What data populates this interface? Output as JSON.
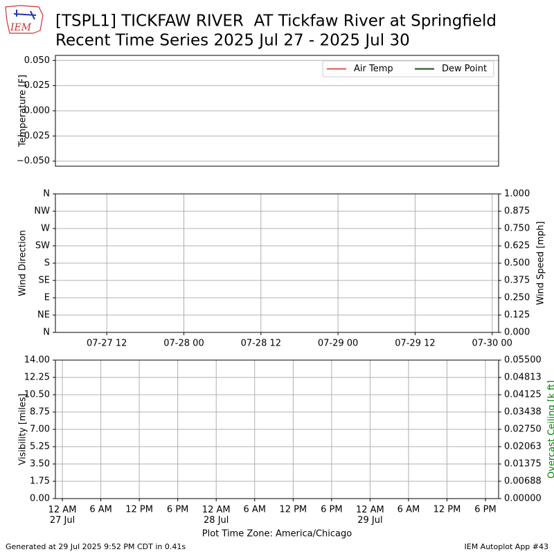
{
  "header": {
    "logo": "IEM",
    "title": [
      "[TSPL1] TICKFAW RIVER  AT Tickfaw River at Springfield",
      "Recent Time Series 2025 Jul 27 - 2025 Jul 30"
    ]
  },
  "chart_data": [
    {
      "type": "line",
      "ylabel": "Temperature [F]",
      "grid": "y",
      "legend": "upper right",
      "ylim": [
        -0.055,
        0.055
      ],
      "yticks": [
        {
          "value": -0.05,
          "label": "−0.050"
        },
        {
          "value": -0.025,
          "label": "−0.025"
        },
        {
          "value": 0,
          "label": "0.000"
        },
        {
          "value": 0.025,
          "label": "0.025"
        },
        {
          "value": 0.05,
          "label": "0.050"
        }
      ],
      "series": [
        {
          "name": "Air Temp",
          "color": "#e06666",
          "values": []
        },
        {
          "name": "Dew Point",
          "color": "#2e5e2e",
          "values": []
        }
      ]
    },
    {
      "type": "line",
      "ylabel": "Wind Direction",
      "y2label": "Wind Speed [mph]",
      "grid": "both",
      "xlim": [
        "2025-07-27 04:00",
        "2025-07-30 01:00"
      ],
      "xticks": [
        {
          "value": "2025-07-27 12:00",
          "label": "07-27 12"
        },
        {
          "value": "2025-07-28 00:00",
          "label": "07-28 00"
        },
        {
          "value": "2025-07-28 12:00",
          "label": "07-28 12"
        },
        {
          "value": "2025-07-29 00:00",
          "label": "07-29 00"
        },
        {
          "value": "2025-07-29 12:00",
          "label": "07-29 12"
        },
        {
          "value": "2025-07-30 00:00",
          "label": "07-30 00"
        }
      ],
      "ylim": [
        0,
        360
      ],
      "yticks": [
        {
          "value": 0,
          "label": "N"
        },
        {
          "value": 45,
          "label": "NE"
        },
        {
          "value": 90,
          "label": "E"
        },
        {
          "value": 135,
          "label": "SE"
        },
        {
          "value": 180,
          "label": "S"
        },
        {
          "value": 225,
          "label": "SW"
        },
        {
          "value": 270,
          "label": "W"
        },
        {
          "value": 315,
          "label": "NW"
        },
        {
          "value": 360,
          "label": "N"
        }
      ],
      "y2lim": [
        0,
        1
      ],
      "y2ticks": [
        {
          "value": 0,
          "label": "0.000"
        },
        {
          "value": 0.125,
          "label": "0.125"
        },
        {
          "value": 0.25,
          "label": "0.250"
        },
        {
          "value": 0.375,
          "label": "0.375"
        },
        {
          "value": 0.5,
          "label": "0.500"
        },
        {
          "value": 0.625,
          "label": "0.625"
        },
        {
          "value": 0.75,
          "label": "0.750"
        },
        {
          "value": 0.875,
          "label": "0.875"
        },
        {
          "value": 1,
          "label": "1.000"
        }
      ]
    },
    {
      "type": "line",
      "ylabel": "Visibility [miles]",
      "y2label": "Overcast Ceiling [k ft]",
      "y2label_color": "#008000",
      "xlabel": "Plot Time Zone: America/Chicago",
      "grid": "both",
      "xlim": [
        "2025-07-26 22:55",
        "2025-07-29 20:03"
      ],
      "xticks": [
        {
          "value": "2025-07-27 00:00",
          "label": "12 AM\n27 Jul"
        },
        {
          "value": "2025-07-27 06:00",
          "label": "6 AM"
        },
        {
          "value": "2025-07-27 12:00",
          "label": "12 PM"
        },
        {
          "value": "2025-07-27 18:00",
          "label": "6 PM"
        },
        {
          "value": "2025-07-28 00:00",
          "label": "12 AM\n28 Jul"
        },
        {
          "value": "2025-07-28 06:00",
          "label": "6 AM"
        },
        {
          "value": "2025-07-28 12:00",
          "label": "12 PM"
        },
        {
          "value": "2025-07-28 18:00",
          "label": "6 PM"
        },
        {
          "value": "2025-07-29 00:00",
          "label": "12 AM\n29 Jul"
        },
        {
          "value": "2025-07-29 06:00",
          "label": "6 AM"
        },
        {
          "value": "2025-07-29 12:00",
          "label": "12 PM"
        },
        {
          "value": "2025-07-29 18:00",
          "label": "6 PM"
        }
      ],
      "ylim": [
        0,
        14
      ],
      "yticks": [
        {
          "value": 0,
          "label": "0.00"
        },
        {
          "value": 1.75,
          "label": "1.75"
        },
        {
          "value": 3.5,
          "label": "3.50"
        },
        {
          "value": 5.25,
          "label": "5.25"
        },
        {
          "value": 7,
          "label": "7.00"
        },
        {
          "value": 8.75,
          "label": "8.75"
        },
        {
          "value": 10.5,
          "label": "10.50"
        },
        {
          "value": 12.25,
          "label": "12.25"
        },
        {
          "value": 14,
          "label": "14.00"
        }
      ],
      "y2lim": [
        0,
        0.055
      ],
      "y2ticks": [
        {
          "value": 0,
          "label": "0.00000"
        },
        {
          "value": 0.00688,
          "label": "0.00688"
        },
        {
          "value": 0.01375,
          "label": "0.01375"
        },
        {
          "value": 0.02063,
          "label": "0.02063"
        },
        {
          "value": 0.0275,
          "label": "0.02750"
        },
        {
          "value": 0.03438,
          "label": "0.03438"
        },
        {
          "value": 0.04125,
          "label": "0.04125"
        },
        {
          "value": 0.04813,
          "label": "0.04813"
        },
        {
          "value": 0.055,
          "label": "0.05500"
        }
      ]
    }
  ],
  "footer": {
    "left": "Generated at 29 Jul 2025 9:52 PM CDT in 0.41s",
    "right": "IEM Autoplot App #43"
  }
}
